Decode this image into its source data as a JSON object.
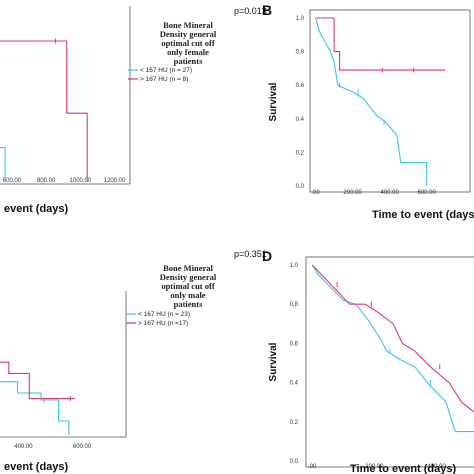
{
  "colors": {
    "cyan": "#33c8e8",
    "red": "#d83a6a",
    "frame": "#555555"
  },
  "chart_data": [
    {
      "id": "A",
      "type": "line",
      "letter": "",
      "p_value": "p=0.013",
      "legend_title": [
        "Bone Mineral",
        "Density general",
        "optimal cut off",
        "only female",
        "patients"
      ],
      "xlabel": "event (days)",
      "ylabel": "",
      "x_ticks": [
        "600.00",
        "800.00",
        "1000.00",
        "1200.00"
      ],
      "y_ticks": [],
      "xlim": [
        530,
        1290
      ],
      "ylim": [
        0,
        1
      ],
      "series": [
        {
          "name": "< 167 HU (n = 27)",
          "color": "cyan",
          "points": [
            [
              530,
              0.2
            ],
            [
              560,
              0.2
            ],
            [
              560,
              0.0
            ]
          ]
        },
        {
          "name": "> 167 HU (n = 8)",
          "color": "red",
          "points": [
            [
              530,
              0.82
            ],
            [
              920,
              0.82
            ],
            [
              920,
              0.4
            ],
            [
              1040,
              0.4
            ],
            [
              1040,
              0.0
            ]
          ],
          "censors": [
            [
              855,
              0.82
            ]
          ]
        }
      ]
    },
    {
      "id": "B",
      "type": "line",
      "letter": "B",
      "p_value": "",
      "legend_title": [],
      "xlabel": "Time to event (days)",
      "ylabel": "Survival",
      "x_ticks": [
        ".00",
        "200.00",
        "400.00",
        "600.00"
      ],
      "y_ticks": [
        "0.0",
        "0.2",
        "0.4",
        "0.6",
        "0.8",
        "1.0"
      ],
      "xlim": [
        -30,
        780
      ],
      "ylim": [
        0,
        1
      ],
      "series": [
        {
          "name": "< 167 HU (n = 27)",
          "color": "cyan",
          "points": [
            [
              0,
              1.0
            ],
            [
              10,
              0.96
            ],
            [
              20,
              0.92
            ],
            [
              40,
              0.88
            ],
            [
              60,
              0.84
            ],
            [
              80,
              0.8
            ],
            [
              100,
              0.74
            ],
            [
              120,
              0.6
            ],
            [
              200,
              0.56
            ],
            [
              260,
              0.52
            ],
            [
              300,
              0.46
            ],
            [
              330,
              0.42
            ],
            [
              380,
              0.38
            ],
            [
              440,
              0.3
            ],
            [
              460,
              0.14
            ],
            [
              600,
              0.14
            ],
            [
              600,
              0.0
            ]
          ],
          "censors": [
            [
              130,
              0.6
            ],
            [
              230,
              0.56
            ],
            [
              370,
              0.38
            ]
          ]
        },
        {
          "name": "> 167 HU (n = 8)",
          "color": "red",
          "points": [
            [
              0,
              1.0
            ],
            [
              100,
              1.0
            ],
            [
              100,
              0.8
            ],
            [
              130,
              0.8
            ],
            [
              130,
              0.69
            ],
            [
              700,
              0.69
            ]
          ],
          "censors": [
            [
              360,
              0.69
            ],
            [
              530,
              0.69
            ]
          ]
        }
      ]
    },
    {
      "id": "C",
      "type": "line",
      "letter": "",
      "p_value": "p=0.351",
      "legend_title": [
        "Bone Mineral",
        "Density general",
        "optimal cut off",
        "only male",
        "patients"
      ],
      "xlabel": "event (days)",
      "ylabel": "",
      "x_ticks": [
        "400.00",
        "600.00"
      ],
      "y_ticks": [],
      "xlim": [
        320,
        750
      ],
      "ylim": [
        0,
        1
      ],
      "series": [
        {
          "name": "< 167 HU (n = 23)",
          "color": "cyan",
          "points": [
            [
              320,
              0.38
            ],
            [
              380,
              0.38
            ],
            [
              380,
              0.3
            ],
            [
              460,
              0.3
            ],
            [
              460,
              0.25
            ],
            [
              520,
              0.25
            ],
            [
              520,
              0.1
            ],
            [
              555,
              0.1
            ],
            [
              555,
              0.0
            ]
          ],
          "censors": [
            [
              470,
              0.25
            ]
          ]
        },
        {
          "name": "> 167 HU (n =17)",
          "color": "red",
          "points": [
            [
              320,
              0.52
            ],
            [
              350,
              0.52
            ],
            [
              350,
              0.44
            ],
            [
              420,
              0.44
            ],
            [
              420,
              0.26
            ],
            [
              575,
              0.26
            ]
          ],
          "censors": [
            [
              560,
              0.26
            ]
          ]
        }
      ]
    },
    {
      "id": "D",
      "type": "line",
      "letter": "D",
      "p_value": "",
      "legend_title": [],
      "xlabel": "Time to event (days)",
      "ylabel": "Survival",
      "x_ticks": [
        ".00",
        "200.00",
        "400.00"
      ],
      "y_ticks": [
        "0.0",
        "0.2",
        "0.4",
        "0.6",
        "0.8",
        "1.0"
      ],
      "xlim": [
        -20,
        520
      ],
      "ylim": [
        0,
        1
      ],
      "series": [
        {
          "name": "< 167 HU (n = 23)",
          "color": "cyan",
          "points": [
            [
              0,
              1.0
            ],
            [
              20,
              0.95
            ],
            [
              50,
              0.9
            ],
            [
              100,
              0.82
            ],
            [
              140,
              0.8
            ],
            [
              180,
              0.72
            ],
            [
              220,
              0.62
            ],
            [
              240,
              0.56
            ],
            [
              280,
              0.52
            ],
            [
              330,
              0.48
            ],
            [
              370,
              0.4
            ],
            [
              430,
              0.3
            ],
            [
              460,
              0.15
            ],
            [
              520,
              0.15
            ]
          ],
          "censors": [
            [
              250,
              0.56
            ],
            [
              380,
              0.4
            ]
          ]
        },
        {
          "name": "> 167 HU (n =17)",
          "color": "red",
          "points": [
            [
              0,
              1.0
            ],
            [
              30,
              0.95
            ],
            [
              60,
              0.9
            ],
            [
              120,
              0.8
            ],
            [
              170,
              0.8
            ],
            [
              210,
              0.76
            ],
            [
              260,
              0.7
            ],
            [
              290,
              0.6
            ],
            [
              330,
              0.56
            ],
            [
              380,
              0.48
            ],
            [
              440,
              0.4
            ],
            [
              480,
              0.3
            ],
            [
              520,
              0.25
            ]
          ],
          "censors": [
            [
              80,
              0.9
            ],
            [
              190,
              0.8
            ],
            [
              410,
              0.48
            ]
          ]
        }
      ]
    }
  ]
}
